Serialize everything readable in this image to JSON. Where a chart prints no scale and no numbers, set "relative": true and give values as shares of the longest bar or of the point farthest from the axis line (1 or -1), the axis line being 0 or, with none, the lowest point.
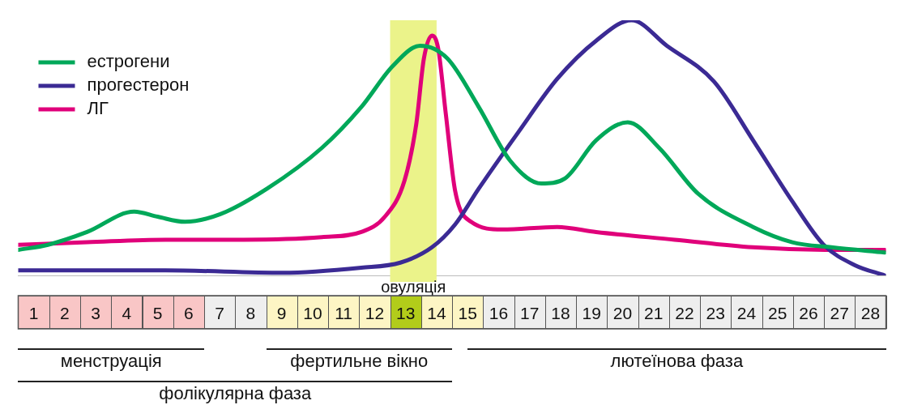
{
  "chart_data": {
    "type": "line",
    "relative": true,
    "xlim": [
      0.5,
      28.5
    ],
    "xticks": [
      1,
      2,
      3,
      4,
      5,
      6,
      7,
      8,
      9,
      10,
      11,
      12,
      13,
      14,
      15,
      16,
      17,
      18,
      19,
      20,
      21,
      22,
      23,
      24,
      25,
      26,
      27,
      28
    ],
    "tick_labels": "x",
    "grid": false,
    "legend": "top left",
    "marker": "none",
    "line_style": "solid",
    "series": [
      {
        "name": "естрогени",
        "color": "#00a859",
        "x": [
          0.5,
          1.46,
          2.72,
          4.24,
          5.0,
          5.88,
          7.02,
          8.53,
          10.3,
          11.57,
          12.58,
          13.47,
          14.35,
          15.36,
          16.37,
          17.38,
          18.14,
          19.15,
          20.17,
          21.18,
          22.44,
          24.21,
          25.48,
          26.74,
          28.46
        ],
        "values": [
          0.1,
          0.12,
          0.17,
          0.25,
          0.23,
          0.21,
          0.24,
          0.34,
          0.5,
          0.66,
          0.82,
          0.9,
          0.85,
          0.66,
          0.45,
          0.36,
          0.38,
          0.53,
          0.6,
          0.5,
          0.32,
          0.19,
          0.13,
          0.11,
          0.09
        ]
      },
      {
        "name": "прогестерон",
        "color": "#3b2a94",
        "x": [
          0.5,
          5.25,
          9.04,
          11.57,
          12.83,
          13.85,
          14.6,
          15.36,
          16.63,
          17.89,
          19.15,
          20.29,
          21.43,
          22.95,
          24.21,
          25.48,
          26.49,
          27.5,
          28.46
        ],
        "values": [
          0.02,
          0.02,
          0.01,
          0.03,
          0.05,
          0.11,
          0.2,
          0.34,
          0.56,
          0.77,
          0.92,
          1,
          0.9,
          0.76,
          0.53,
          0.29,
          0.12,
          0.04,
          0
        ]
      },
      {
        "name": "ЛГ",
        "color": "#e0007a",
        "x": [
          0.5,
          2.72,
          5.25,
          7.78,
          10.3,
          11.57,
          12.33,
          12.96,
          13.34,
          13.59,
          13.85,
          14.05,
          14.3,
          14.6,
          15.11,
          16.12,
          17.89,
          19.15,
          21.68,
          24.21,
          26.74,
          28.46
        ],
        "values": [
          0.12,
          0.13,
          0.14,
          0.14,
          0.15,
          0.17,
          0.23,
          0.37,
          0.59,
          0.85,
          0.94,
          0.89,
          0.63,
          0.33,
          0.21,
          0.18,
          0.19,
          0.17,
          0.14,
          0.11,
          0.1,
          0.1
        ]
      }
    ],
    "bands": [
      {
        "axis": "x",
        "from": 12.5,
        "to": 14,
        "label": "овуляція",
        "color": "#ebf38a"
      }
    ],
    "annotations": [
      "менструація",
      "фертильне вікно",
      "лютеїнова фаза",
      "фолікулярна фаза"
    ]
  }
}
